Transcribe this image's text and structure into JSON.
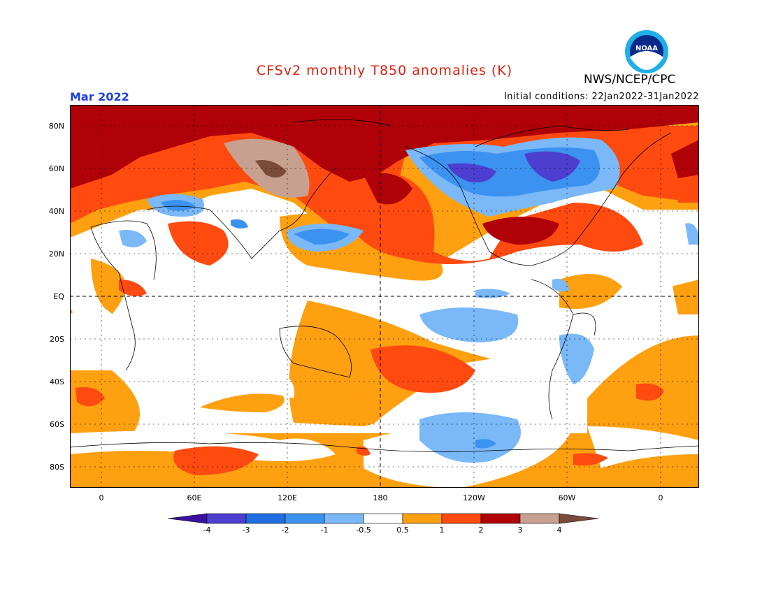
{
  "header": {
    "title": "CFSv2 monthly T850 anomalies (K)",
    "agency": "NWS/NCEP/CPC",
    "logo_text": "NOAA",
    "valid_month": "Mar 2022",
    "initial_conditions": "Initial conditions: 22Jan2022-31Jan2022"
  },
  "axes": {
    "lat_labels": [
      "80N",
      "60N",
      "40N",
      "20N",
      "EQ",
      "20S",
      "40S",
      "60S",
      "80S"
    ],
    "lon_labels": [
      "0",
      "60E",
      "120E",
      "180",
      "120W",
      "60W",
      "0"
    ]
  },
  "legend": {
    "colors": [
      "#3a10a0",
      "#4c3fd0",
      "#1e6ee0",
      "#3c92f0",
      "#7ab8f8",
      "#ffffff",
      "#ffa010",
      "#ff4a10",
      "#b00008",
      "#c8a090",
      "#7a4a3a"
    ],
    "tick_labels": [
      "-4",
      "-3",
      "-2",
      "-1",
      "-0.5",
      "0.5",
      "1",
      "2",
      "3",
      "4"
    ]
  },
  "map_style": {
    "ocean_background": "#ffffff",
    "warm_1": "#ffa010",
    "warm_2": "#ff4a10",
    "warm_3": "#b00008",
    "warm_4": "#c8a090",
    "warm_5": "#7a4a3a",
    "cool_1": "#7ab8f8",
    "cool_2": "#3c92f0",
    "cool_3": "#1e6ee0",
    "cool_4": "#4c3fd0",
    "coastline": "#000000"
  }
}
